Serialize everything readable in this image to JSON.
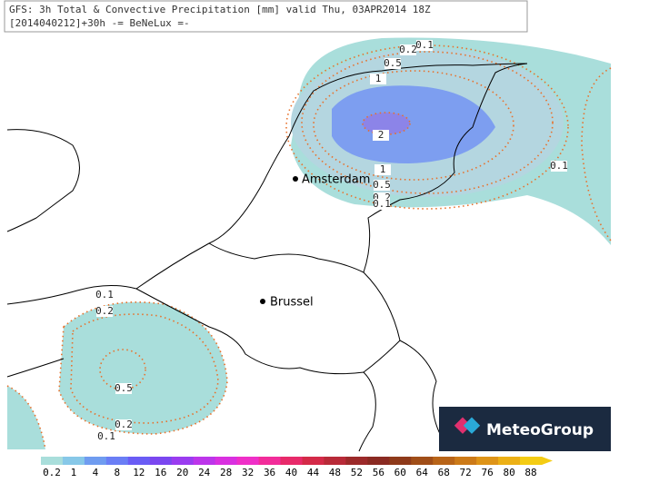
{
  "header": {
    "line1": "GFS: 3h Total & Convective Precipitation [mm] valid Thu, 03APR2014 18Z",
    "line2": "[2014040212]+30h -= BeNeLux =-"
  },
  "cities": [
    {
      "label": "Amsterdam"
    },
    {
      "label": "Brussel"
    }
  ],
  "contour_labels": [
    0.1,
    0.2,
    0.5,
    1,
    2,
    1,
    0.5,
    0.2,
    0.1,
    0.1,
    0.1,
    0.2,
    0.5,
    0.2,
    0.1
  ],
  "legend": {
    "labels": [
      0.2,
      1,
      4,
      8,
      12,
      16,
      20,
      24,
      28,
      32,
      36,
      40,
      44,
      48,
      52,
      56,
      60,
      64,
      68,
      72,
      76,
      80,
      88
    ]
  },
  "logo": "MeteoGroup"
}
